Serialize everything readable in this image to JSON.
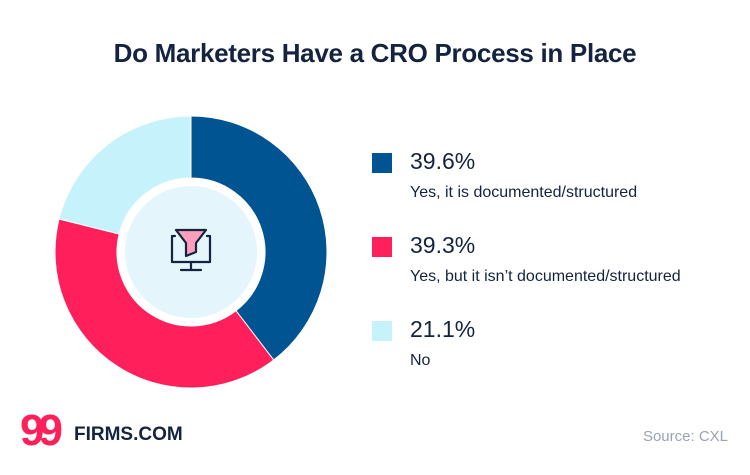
{
  "chart_data": {
    "type": "pie",
    "title": "Do Marketers Have a CRO Process in Place",
    "slices": [
      {
        "label": "Yes, it is documented/structured",
        "value": 39.6,
        "display": "39.6%",
        "color": "#005492"
      },
      {
        "label": "Yes, but it isn’t documented/structured",
        "value": 39.3,
        "display": "39.3%",
        "color": "#ff1f5a"
      },
      {
        "label": "No",
        "value": 21.1,
        "display": "21.1%",
        "color": "#c6f2fb"
      }
    ],
    "legend_position": "right",
    "center_icon": "monitor-funnel-icon"
  },
  "footer": {
    "brand_nines": "99",
    "brand_name": "FIRMS.COM",
    "source": "Source: CXL"
  }
}
